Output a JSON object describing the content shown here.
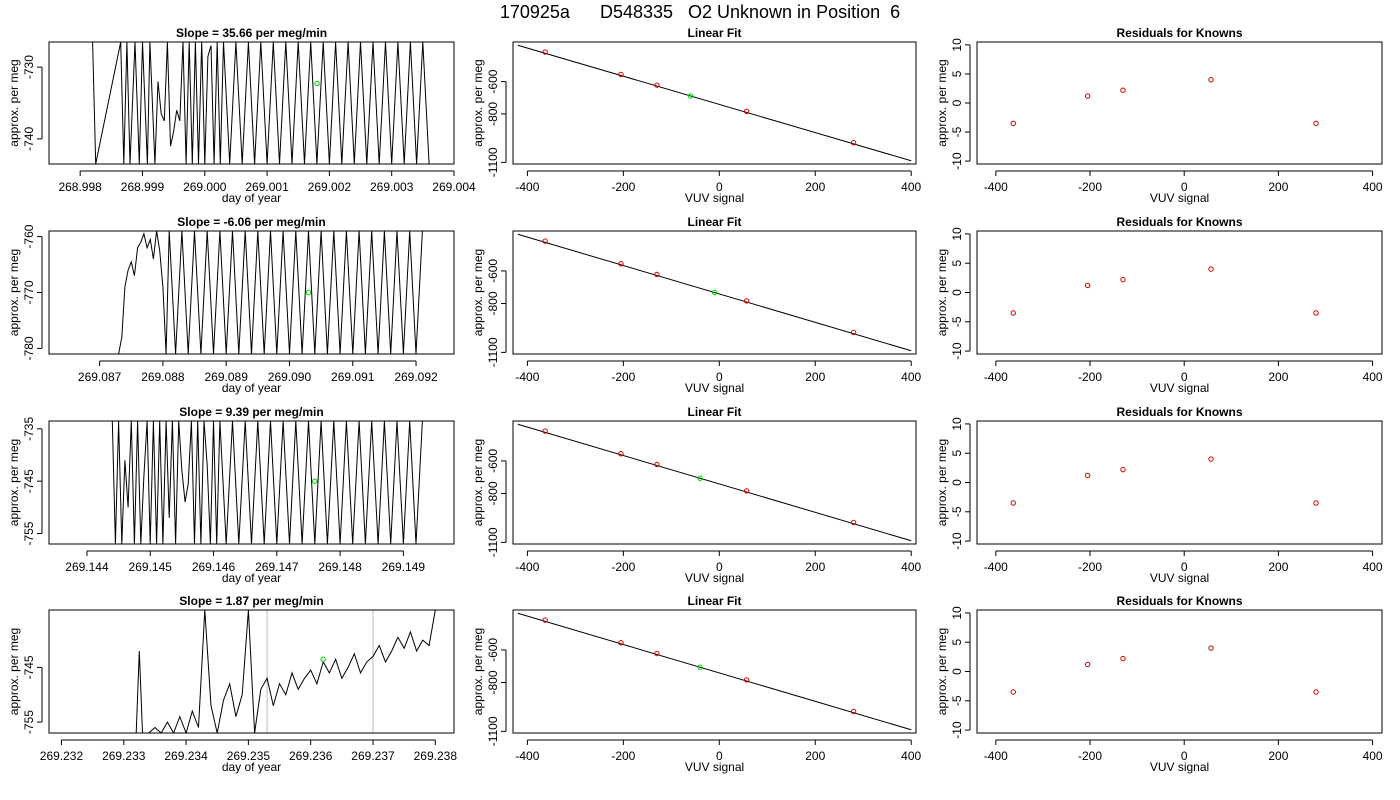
{
  "page_title": "170925a      D548335   O2 Unknown in Position  6",
  "colors": {
    "trace": "#000000",
    "unknown_point": "#00cc00",
    "known_point": "#cc0000",
    "grid_line": "#bbbbbb"
  },
  "chart_data": [
    {
      "row": 1,
      "type": "line",
      "title": "Slope =  35.66  per meg/min",
      "xlabel": "day of year",
      "ylabel": "approx. per meg",
      "xlim": [
        268.9975,
        269.004
      ],
      "ylim": [
        -743.5,
        -726.5
      ],
      "xticks": [
        "268.998",
        "268.999",
        "269.000",
        "269.001",
        "269.002",
        "269.003",
        "269.004"
      ],
      "yticks": [
        "-740",
        "-730"
      ],
      "series": [
        {
          "x": [
            268.9982,
            268.99825,
            268.99865,
            268.9987,
            268.99875,
            268.9988,
            268.99888,
            268.99895,
            268.999,
            268.99908,
            268.99912,
            268.9992,
            268.99925,
            268.9993,
            268.99935,
            268.9994,
            268.99945,
            268.9995,
            268.99955,
            268.9996,
            268.99965,
            268.9997,
            268.99975,
            268.9998,
            268.99985,
            268.9999,
            268.99995,
            269.0,
            269.00005,
            269.0001,
            269.00015,
            269.0002,
            269.00025,
            269.0003,
            269.0004,
            269.0005,
            269.0006,
            269.0007,
            269.0008,
            269.0009,
            269.001,
            269.0011,
            269.0012,
            269.0013,
            269.0014,
            269.0015,
            269.0016,
            269.0017,
            269.0018,
            269.0019,
            269.002,
            269.0021,
            269.0022,
            269.0023,
            269.0024,
            269.0025,
            269.0026,
            269.0027,
            269.0028,
            269.0029,
            269.003,
            269.0031,
            269.0032,
            269.0033,
            269.0034,
            269.0035,
            269.0036
          ],
          "y": [
            -726.5,
            -743.5,
            -726.5,
            -743.5,
            -726.5,
            -743.5,
            -726.5,
            -743.5,
            -726.5,
            -743.5,
            -726.5,
            -743.5,
            -732.0,
            -736.5,
            -737.5,
            -726.5,
            -741.0,
            -739.0,
            -736.0,
            -737.5,
            -726.5,
            -743.5,
            -726.5,
            -743.5,
            -726.5,
            -743.5,
            -726.5,
            -743.5,
            -728.5,
            -727.0,
            -743.5,
            -726.5,
            -743.5,
            -726.5,
            -743.5,
            -726.5,
            -743.5,
            -726.5,
            -743.5,
            -726.5,
            -743.5,
            -726.5,
            -743.5,
            -726.5,
            -743.5,
            -726.5,
            -743.5,
            -726.5,
            -743.5,
            -726.5,
            -743.5,
            -726.5,
            -743.5,
            -726.5,
            -743.5,
            -726.5,
            -743.5,
            -726.5,
            -743.5,
            -726.5,
            -743.5,
            -726.5,
            -743.5,
            -726.5,
            -743.5,
            -726.5,
            -743.5
          ]
        }
      ],
      "unknown_point": {
        "x": 269.0018,
        "y": -732.3
      }
    },
    {
      "row": 2,
      "type": "line",
      "title": "Slope =  -6.06  per meg/min",
      "xlabel": "day of year",
      "ylabel": "approx. per meg",
      "xlim": [
        269.0862,
        269.0926
      ],
      "ylim": [
        -781.0,
        -759.0
      ],
      "xticks": [
        "269.087",
        "269.088",
        "269.089",
        "269.090",
        "269.091",
        "269.092"
      ],
      "yticks": [
        "-780",
        "-770",
        "-760"
      ],
      "series": [
        {
          "x": [
            269.0873,
            269.08735,
            269.0874,
            269.08745,
            269.0875,
            269.08755,
            269.0876,
            269.08765,
            269.0877,
            269.08775,
            269.0878,
            269.08785,
            269.0879,
            269.08795,
            269.088,
            269.08805,
            269.0881,
            269.0882,
            269.0883,
            269.0884,
            269.0885,
            269.0886,
            269.0887,
            269.0888,
            269.0889,
            269.089,
            269.0891,
            269.0892,
            269.0893,
            269.0894,
            269.0895,
            269.0896,
            269.0897,
            269.0898,
            269.0899,
            269.09,
            269.0901,
            269.0902,
            269.0903,
            269.0904,
            269.0905,
            269.0906,
            269.0907,
            269.0908,
            269.0909,
            269.091,
            269.0911,
            269.0912,
            269.0913,
            269.0914,
            269.0915,
            269.0916,
            269.0917,
            269.0918,
            269.0919,
            269.092,
            269.0921
          ],
          "y": [
            -781.0,
            -778.0,
            -769.0,
            -766.0,
            -764.5,
            -767.0,
            -762.0,
            -761.0,
            -759.5,
            -762.0,
            -760.5,
            -764.0,
            -759.0,
            -762.5,
            -769.0,
            -781.0,
            -759.0,
            -781.0,
            -759.0,
            -781.0,
            -759.0,
            -781.0,
            -759.0,
            -781.0,
            -759.0,
            -781.0,
            -759.0,
            -781.0,
            -759.0,
            -781.0,
            -759.0,
            -781.0,
            -759.0,
            -781.0,
            -759.0,
            -781.0,
            -759.0,
            -781.0,
            -759.0,
            -781.0,
            -759.0,
            -781.0,
            -759.0,
            -781.0,
            -759.0,
            -781.0,
            -759.0,
            -781.0,
            -759.0,
            -781.0,
            -759.0,
            -781.0,
            -759.0,
            -781.0,
            -759.0,
            -781.0,
            -759.0
          ]
        }
      ],
      "unknown_point": {
        "x": 269.0903,
        "y": -770.0
      }
    },
    {
      "row": 3,
      "type": "line",
      "title": "Slope =  9.39  per meg/min",
      "xlabel": "day of year",
      "ylabel": "approx. per meg",
      "xlim": [
        269.1434,
        269.1498
      ],
      "ylim": [
        -757.0,
        -733.5
      ],
      "xticks": [
        "269.144",
        "269.145",
        "269.146",
        "269.147",
        "269.148",
        "269.149"
      ],
      "yticks": [
        "-755",
        "-745",
        "-735"
      ],
      "series": [
        {
          "x": [
            269.1444,
            269.14445,
            269.1445,
            269.14455,
            269.1446,
            269.14465,
            269.1447,
            269.14475,
            269.1448,
            269.14485,
            269.1449,
            269.14495,
            269.145,
            269.14505,
            269.1451,
            269.14515,
            269.1452,
            269.14525,
            269.1453,
            269.14535,
            269.1454,
            269.14545,
            269.1455,
            269.14555,
            269.1456,
            269.14565,
            269.1457,
            269.14575,
            269.1458,
            269.14585,
            269.1459,
            269.14595,
            269.146,
            269.14605,
            269.1461,
            269.1462,
            269.1463,
            269.1464,
            269.1465,
            269.1466,
            269.1467,
            269.1468,
            269.1469,
            269.147,
            269.1471,
            269.1472,
            269.1473,
            269.1474,
            269.1475,
            269.1476,
            269.1477,
            269.1478,
            269.1479,
            269.148,
            269.1481,
            269.1482,
            269.1483,
            269.1484,
            269.1485,
            269.1486,
            269.1487,
            269.1488,
            269.1489,
            269.149,
            269.1491,
            269.1492,
            269.1493
          ],
          "y": [
            -733.5,
            -757.0,
            -733.5,
            -757.0,
            -741.0,
            -750.0,
            -733.5,
            -757.0,
            -733.5,
            -757.0,
            -744.0,
            -733.5,
            -757.0,
            -733.5,
            -757.0,
            -733.5,
            -757.0,
            -733.5,
            -752.0,
            -733.5,
            -757.0,
            -733.5,
            -743.0,
            -749.0,
            -745.5,
            -733.5,
            -757.0,
            -733.5,
            -757.0,
            -733.5,
            -742.0,
            -757.0,
            -733.5,
            -757.0,
            -733.5,
            -757.0,
            -733.5,
            -757.0,
            -733.5,
            -757.0,
            -733.5,
            -757.0,
            -733.5,
            -757.0,
            -733.5,
            -757.0,
            -733.5,
            -757.0,
            -733.5,
            -757.0,
            -733.5,
            -757.0,
            -733.5,
            -757.0,
            -733.5,
            -757.0,
            -733.5,
            -757.0,
            -733.5,
            -757.0,
            -733.5,
            -757.0,
            -733.5,
            -757.0,
            -733.5,
            -757.0,
            -733.5
          ]
        }
      ],
      "unknown_point": {
        "x": 269.1476,
        "y": -745.0
      }
    },
    {
      "row": 4,
      "type": "line",
      "title": "Slope =  1.87  per meg/min",
      "xlabel": "day of year",
      "ylabel": "approx. per meg",
      "xlim": [
        269.2318,
        269.2383
      ],
      "ylim": [
        -757.0,
        -734.5
      ],
      "xticks": [
        "269.232",
        "269.233",
        "269.234",
        "269.235",
        "269.236",
        "269.237",
        "269.238"
      ],
      "yticks": [
        "-755",
        "-745"
      ],
      "vlines": [
        269.2353,
        269.237
      ],
      "series": [
        {
          "x": [
            269.2332,
            269.23325,
            269.2333,
            269.2334,
            269.2335,
            269.2336,
            269.2337,
            269.2338,
            269.2339,
            269.234,
            269.2341,
            269.2342,
            269.2343,
            269.2344,
            269.2345,
            269.2346,
            269.2347,
            269.2348,
            269.2349,
            269.235,
            269.2351,
            269.2352,
            269.2353,
            269.2354,
            269.2355,
            269.2356,
            269.2357,
            269.2358,
            269.2359,
            269.236,
            269.2361,
            269.2362,
            269.2363,
            269.2364,
            269.2365,
            269.2366,
            269.2367,
            269.2368,
            269.2369,
            269.237,
            269.2371,
            269.2372,
            269.2373,
            269.2374,
            269.2375,
            269.2376,
            269.2377,
            269.2378,
            269.2379,
            269.238
          ],
          "y": [
            -757.0,
            -742.0,
            -757.0,
            -757.0,
            -756.0,
            -757.0,
            -755.0,
            -757.0,
            -754.0,
            -757.0,
            -753.0,
            -756.0,
            -734.5,
            -752.0,
            -757.0,
            -751.0,
            -748.0,
            -754.0,
            -750.0,
            -734.5,
            -757.0,
            -749.0,
            -747.0,
            -752.0,
            -748.0,
            -750.0,
            -746.0,
            -749.0,
            -747.0,
            -745.5,
            -748.0,
            -744.0,
            -746.0,
            -743.5,
            -747.0,
            -745.0,
            -742.5,
            -746.0,
            -744.0,
            -743.0,
            -741.0,
            -744.0,
            -742.0,
            -739.5,
            -741.5,
            -738.5,
            -742.0,
            -740.0,
            -741.0,
            -734.5
          ]
        }
      ],
      "unknown_point": {
        "x": 269.2362,
        "y": -743.5
      }
    }
  ],
  "linear_fit": {
    "title": "Linear Fit",
    "xlabel": "VUV signal",
    "ylabel": "approx. per meg",
    "xlim": [
      -430,
      410
    ],
    "ylim": [
      -1110,
      -355
    ],
    "xticks": [
      -400,
      -200,
      0,
      200,
      400
    ],
    "yticks": [
      -600,
      -800,
      -1100
    ],
    "ytick_labels": [
      "-600",
      "-800",
      "-1100"
    ],
    "fit_line": {
      "x": [
        -420,
        400
      ],
      "y": [
        -375,
        -1090
      ]
    },
    "knowns_x": [
      -363,
      -205,
      -130,
      57,
      280
    ],
    "knowns_y": [
      -417,
      -556,
      -622,
      -784,
      -978
    ],
    "unknown_x": [
      -60,
      -10,
      -40,
      -40
    ]
  },
  "residuals": {
    "title": "Residuals for Knowns",
    "xlabel": "VUV signal",
    "ylabel": "approx. per meg",
    "xlim": [
      -440,
      420
    ],
    "ylim": [
      -10.5,
      10.5
    ],
    "xticks": [
      -400,
      -200,
      0,
      200,
      400
    ],
    "yticks": [
      -10,
      -5,
      0,
      5,
      10
    ],
    "x": [
      -363,
      -205,
      -130,
      57,
      280
    ],
    "y": [
      -3.5,
      1.2,
      2.2,
      4.0,
      -3.5
    ]
  }
}
